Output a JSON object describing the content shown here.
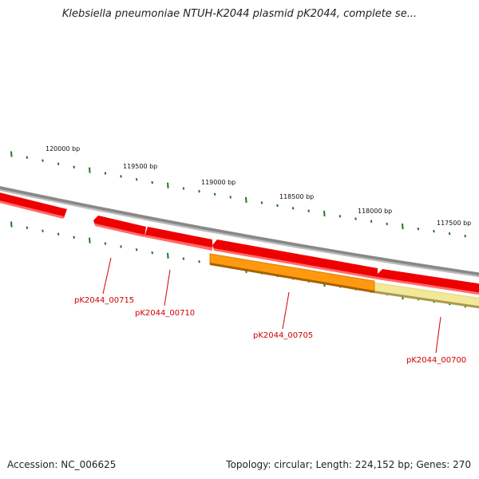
{
  "title": "Klebsiella pneumoniae NTUH-K2044 plasmid pK2044, complete se...",
  "footer": {
    "accession": "Accession: NC_006625",
    "summary": "Topology: circular; Length: 224,152 bp; Genes: 270"
  },
  "colors": {
    "backbone": "#8a8a8a",
    "gene_red": "#ee0000",
    "gene_orange": "#ff9900",
    "gene_yellow": "#f2e898",
    "tick": "#1a7a1a",
    "gene_label": "#d00000"
  },
  "ruler": {
    "labels": [
      "120000 bp",
      "119500 bp",
      "119000 bp",
      "118500 bp",
      "118000 bp",
      "117500 bp"
    ]
  },
  "genes": [
    {
      "label": "pK2044_00715"
    },
    {
      "label": "pK2044_00710"
    },
    {
      "label": "pK2044_00705"
    },
    {
      "label": "pK2044_00700"
    }
  ]
}
